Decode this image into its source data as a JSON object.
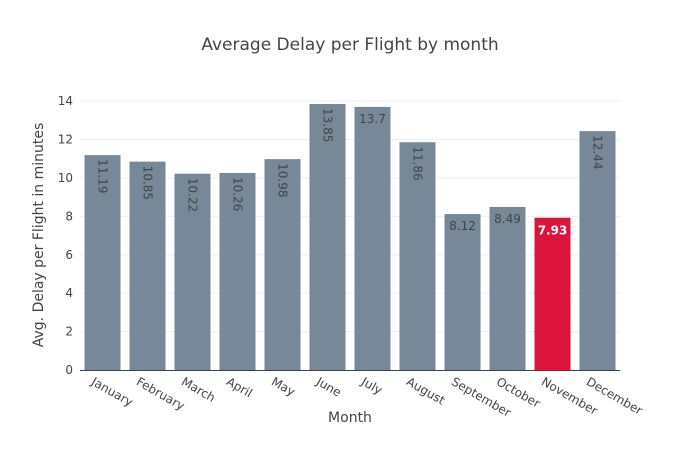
{
  "chart_data": {
    "type": "bar",
    "title": "Average Delay per Flight by month",
    "xlabel": "Month",
    "ylabel": "Avg. Delay per Flight in minutes",
    "categories": [
      "January",
      "February",
      "March",
      "April",
      "May",
      "June",
      "July",
      "August",
      "September",
      "October",
      "November",
      "December"
    ],
    "values": [
      11.19,
      10.85,
      10.22,
      10.26,
      10.98,
      13.85,
      13.7,
      11.86,
      8.12,
      8.49,
      7.93,
      12.44
    ],
    "value_labels": [
      "11.19",
      "10.85",
      "10.22",
      "10.26",
      "10.98",
      "13.85",
      "13.7",
      "11.86",
      "8.12",
      "8.49",
      "7.93",
      "12.44"
    ],
    "yticks": [
      0,
      2,
      4,
      6,
      8,
      10,
      12,
      14
    ],
    "ylim": [
      0,
      14.58
    ],
    "grid": true,
    "colors": {
      "bar": "#778899",
      "highlight": "#dc143c",
      "highlight_index": 10,
      "text": "#444444",
      "title": "#444444",
      "label_dark": "#444444",
      "label_light": "#ffffff"
    }
  }
}
